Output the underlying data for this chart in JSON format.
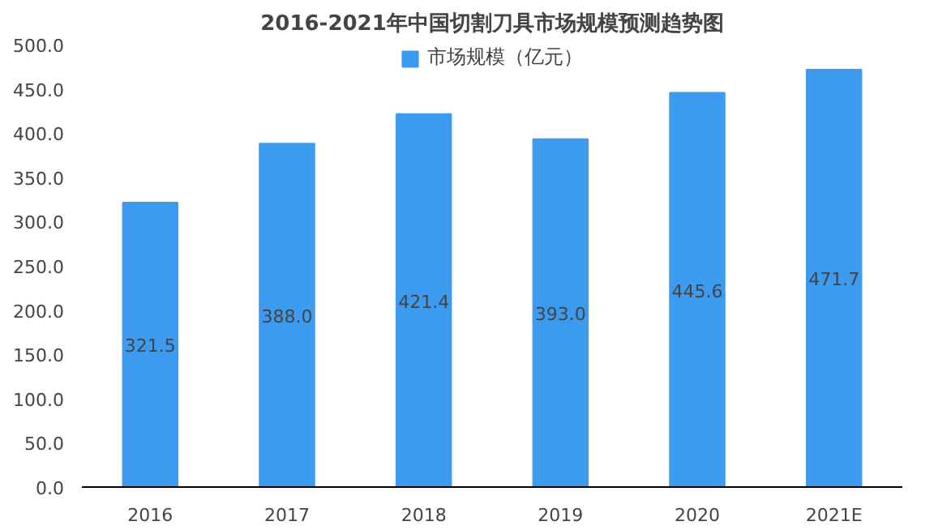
{
  "chart_data": {
    "type": "bar",
    "title": "2016-2021年中国切割刀具市场规模预测趋势图",
    "categories": [
      "2016",
      "2017",
      "2018",
      "2019",
      "2020",
      "2021E"
    ],
    "series": [
      {
        "name": "市场规模（亿元）",
        "color": "#3d9bef",
        "values": [
          321.5,
          388.0,
          421.4,
          393.0,
          445.6,
          471.7
        ],
        "value_labels": [
          "321.5",
          "388.0",
          "421.4",
          "393.0",
          "445.6",
          "471.7"
        ]
      }
    ],
    "ylim": [
      0,
      500
    ],
    "yticks": [
      {
        "value": 0,
        "label": "0.0"
      },
      {
        "value": 50,
        "label": "50.0"
      },
      {
        "value": 100,
        "label": "100.0"
      },
      {
        "value": 150,
        "label": "150.0"
      },
      {
        "value": 200,
        "label": "200.0"
      },
      {
        "value": 250,
        "label": "250.0"
      },
      {
        "value": 300,
        "label": "300.0"
      },
      {
        "value": 350,
        "label": "350.0"
      },
      {
        "value": 400,
        "label": "400.0"
      },
      {
        "value": 450,
        "label": "450.0"
      },
      {
        "value": 500,
        "label": "500.0"
      }
    ],
    "grid": false,
    "legend": "top"
  }
}
